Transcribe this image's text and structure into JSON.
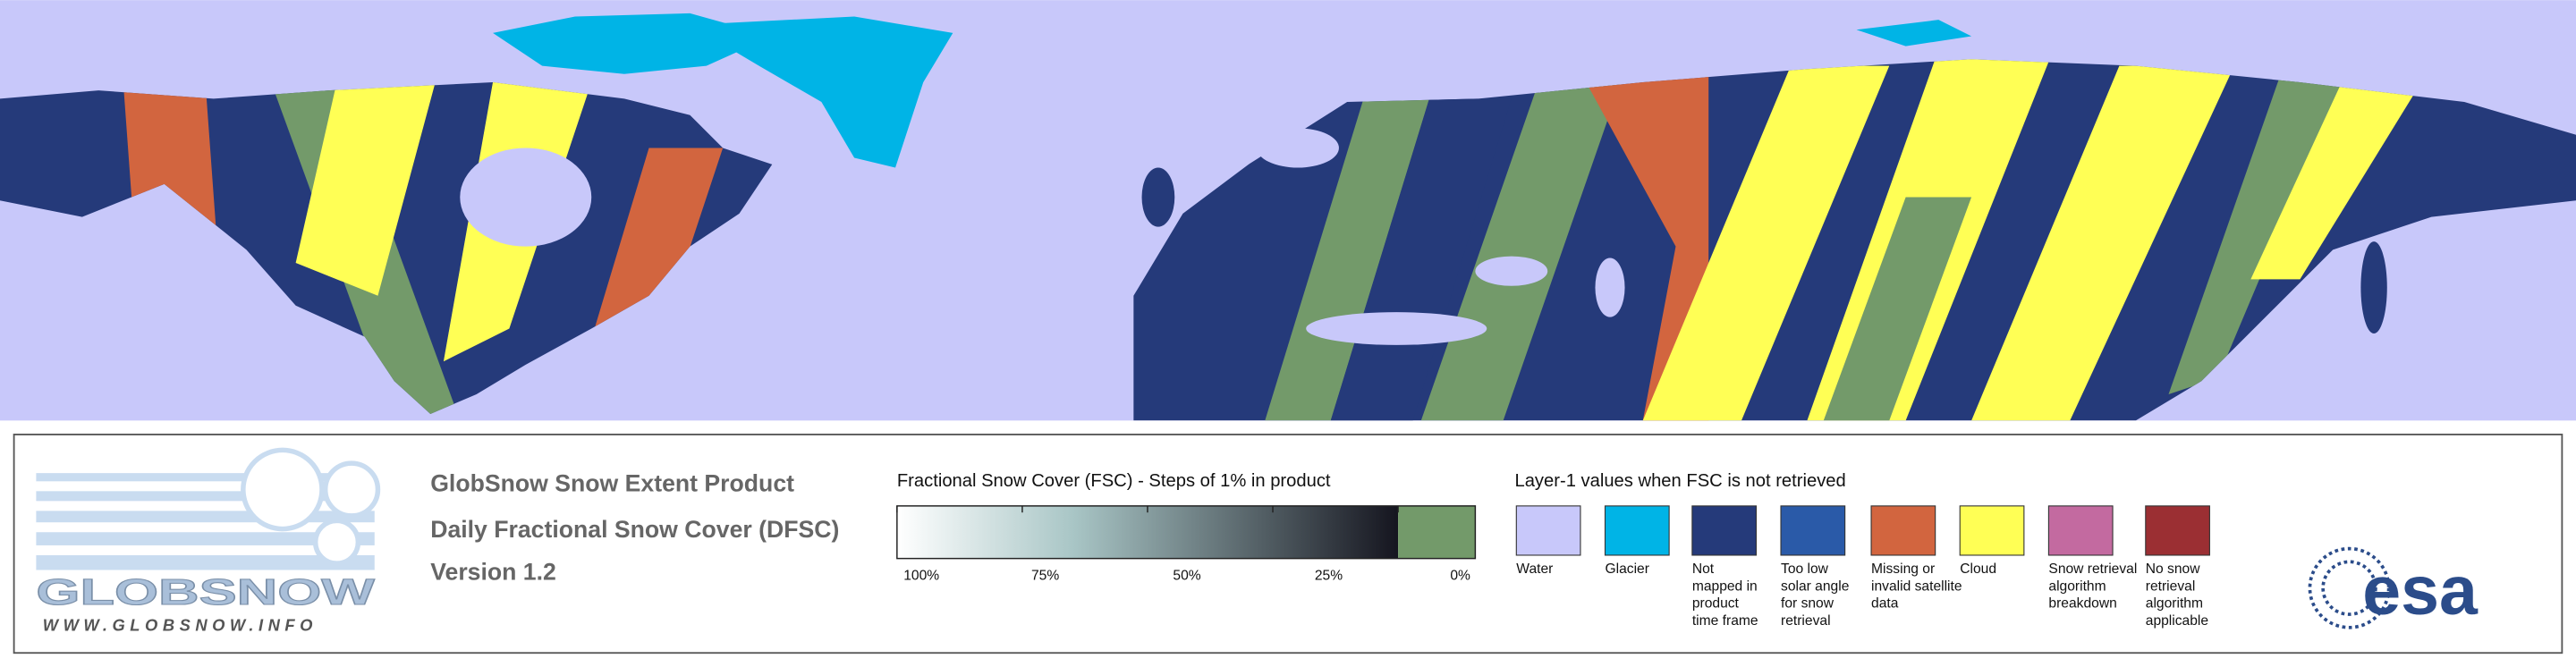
{
  "logo": {
    "name": "GLOBSNOW",
    "url": "WWW.GLOBSNOW.INFO"
  },
  "product": {
    "lines": [
      "GlobSnow Snow Extent Product",
      "Daily Fractional Snow Cover (DFSC)",
      "Version 1.2"
    ]
  },
  "colorbar": {
    "title": "Fractional Snow Cover (FSC) - Steps of 1% in product",
    "range": [
      100,
      0
    ],
    "start_color": "#ffffff",
    "end_color": "#15151f",
    "no_snow_color": "#739a6a",
    "ticks": [
      {
        "value": 100,
        "label": "100%"
      },
      {
        "value": 75,
        "label": "75%"
      },
      {
        "value": 50,
        "label": "50%"
      },
      {
        "value": 25,
        "label": "25%"
      },
      {
        "value": 0,
        "label": "0%"
      }
    ]
  },
  "layers": {
    "title": "Layer-1 values when FSC is not retrieved",
    "items": [
      {
        "color": "#c8c8fa",
        "label": [
          "Water"
        ]
      },
      {
        "color": "#00b4e6",
        "label": [
          "Glacier"
        ]
      },
      {
        "color": "#253a7a",
        "label": [
          "Not",
          "mapped in",
          "product",
          "time frame"
        ]
      },
      {
        "color": "#2a5aa8",
        "label": [
          "Too low",
          "solar angle",
          "for snow",
          "retrieval"
        ]
      },
      {
        "color": "#d2653f",
        "label": [
          "Missing or",
          "invalid satellite",
          "data"
        ]
      },
      {
        "color": "#ffff55",
        "label": [
          "Cloud"
        ]
      },
      {
        "color": "#c36aa0",
        "label": [
          "Snow retrieval",
          "algorithm",
          "breakdown"
        ]
      },
      {
        "color": "#9b2f33",
        "label": [
          "No snow",
          "retrieval",
          "algorithm",
          "applicable"
        ]
      }
    ]
  },
  "agency": {
    "name": "esa"
  }
}
